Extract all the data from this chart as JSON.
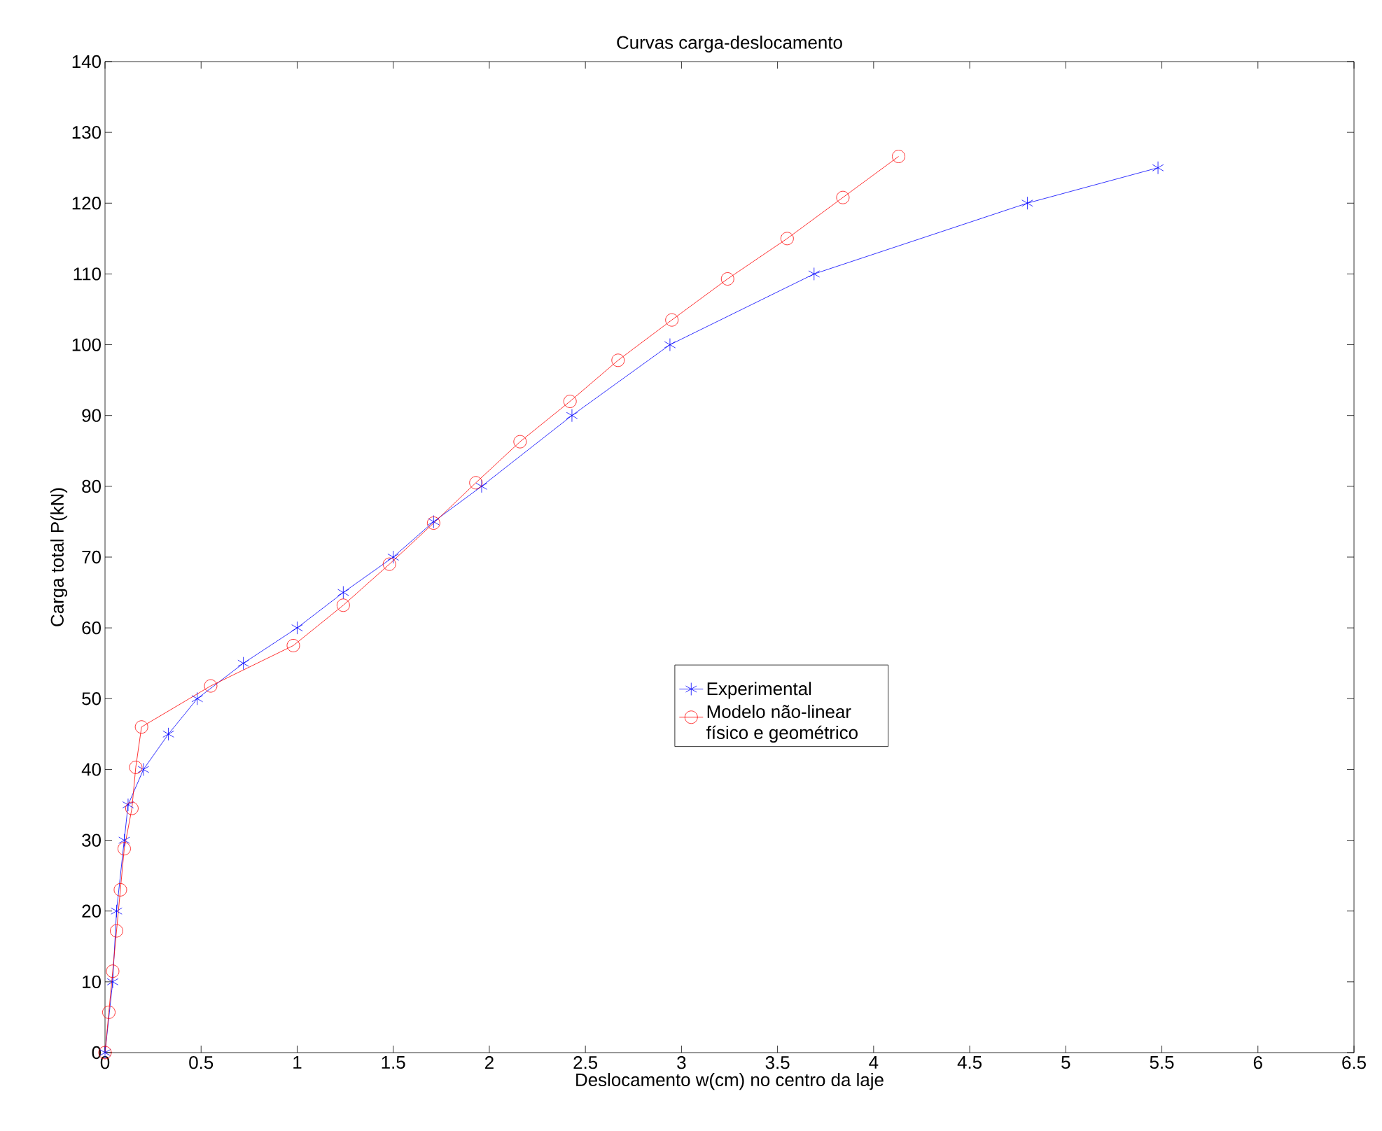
{
  "chart_data": {
    "type": "line",
    "title": "Curvas carga-deslocamento",
    "xlabel": "Deslocamento w(cm) no centro da laje",
    "ylabel": "Carga total P(kN)",
    "xlim": [
      0,
      6.5
    ],
    "xticks": [
      0,
      0.5,
      1,
      1.5,
      2,
      2.5,
      3,
      3.5,
      4,
      4.5,
      5,
      5.5,
      6,
      6.5
    ],
    "ylim": [
      0,
      140
    ],
    "yticks": [
      0,
      10,
      20,
      30,
      40,
      50,
      60,
      70,
      80,
      90,
      100,
      110,
      120,
      130,
      140
    ],
    "legend": "center",
    "series": [
      {
        "name": "Experimental",
        "color": "#0000ff",
        "marker": "cross",
        "x": [
          0,
          0.04,
          0.06,
          0.1,
          0.12,
          0.2,
          0.33,
          0.48,
          0.72,
          1.0,
          1.24,
          1.5,
          1.71,
          1.96,
          2.43,
          2.94,
          3.69,
          4.8,
          5.48
        ],
        "values": [
          0,
          10,
          20,
          30,
          35,
          40,
          45,
          50,
          55,
          60,
          65,
          70,
          75,
          80,
          90,
          100,
          110,
          120,
          125
        ]
      },
      {
        "name": "Modelo não-linear físico e geométrico",
        "color": "#ff0000",
        "marker": "circle",
        "x": [
          0,
          0.02,
          0.04,
          0.06,
          0.08,
          0.1,
          0.14,
          0.16,
          0.19,
          0.55,
          0.98,
          1.24,
          1.48,
          1.71,
          1.93,
          2.16,
          2.42,
          2.67,
          2.95,
          3.24,
          3.55,
          3.84,
          4.13
        ],
        "values": [
          0,
          5.7,
          11.5,
          17.2,
          23,
          28.8,
          34.5,
          40.3,
          46,
          51.8,
          57.5,
          63.2,
          69,
          74.8,
          80.5,
          86.3,
          92,
          97.8,
          103.5,
          109.3,
          115,
          120.8,
          126.6
        ]
      }
    ]
  }
}
